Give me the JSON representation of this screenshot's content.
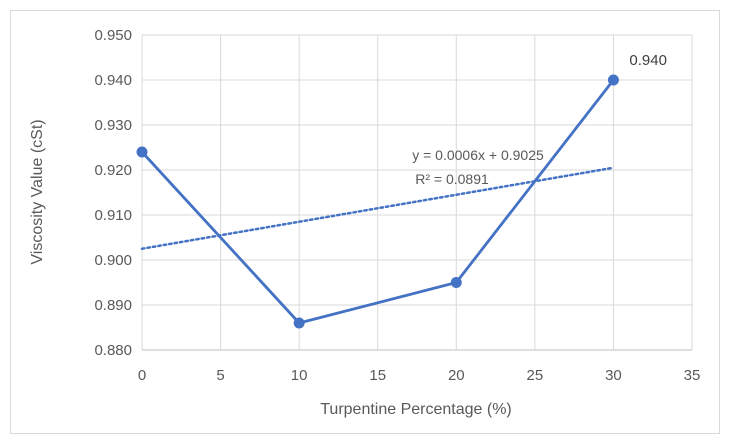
{
  "chart_data": {
    "type": "line",
    "xlabel": "Turpentine Percentage (%)",
    "ylabel": "Viscosity Value (cSt)",
    "xlim": [
      0,
      35
    ],
    "ylim": [
      0.88,
      0.95
    ],
    "x_ticks": [
      "0",
      "5",
      "10",
      "15",
      "20",
      "25",
      "30",
      "35"
    ],
    "y_ticks": [
      "0.880",
      "0.890",
      "0.900",
      "0.910",
      "0.920",
      "0.930",
      "0.940",
      "0.950"
    ],
    "grid": true,
    "series": [
      {
        "x": [
          0,
          10,
          20,
          30
        ],
        "y": [
          0.924,
          0.886,
          0.895,
          0.94
        ],
        "color": "#4472C4",
        "marker": "circle",
        "data_labels": [
          null,
          null,
          null,
          "0.940"
        ]
      }
    ],
    "trendline": {
      "type": "linear",
      "color": "#4472C4",
      "style": "dotted",
      "x_range": [
        0,
        30
      ],
      "slope": 0.0006,
      "intercept": 0.9025,
      "equation": "y = 0.0006x + 0.9025",
      "r_squared": "R² = 0.0891"
    }
  }
}
